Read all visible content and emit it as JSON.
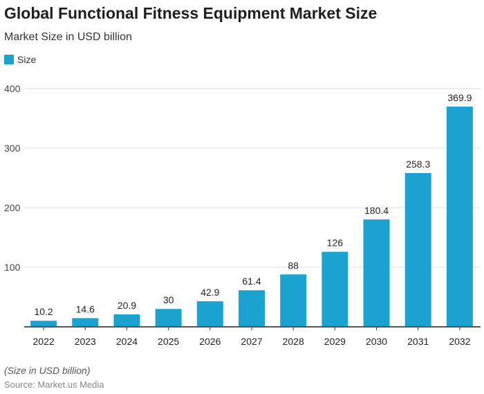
{
  "title": "Global Functional Fitness Equipment Market Size",
  "subtitle": "Market Size in USD billion",
  "note": "(Size in USD billion)",
  "source": "Source: Market.us Media",
  "chart_data": {
    "type": "bar",
    "title": "Global Functional Fitness Equipment Market Size",
    "subtitle": "Market Size in USD billion",
    "categories": [
      "2022",
      "2023",
      "2024",
      "2025",
      "2026",
      "2027",
      "2028",
      "2029",
      "2030",
      "2031",
      "2032"
    ],
    "series": [
      {
        "name": "Size",
        "values": [
          10.2,
          14.6,
          20.9,
          30,
          42.9,
          61.4,
          88,
          126,
          180.4,
          258.3,
          369.9
        ],
        "labels": [
          "10.2",
          "14.6",
          "20.9",
          "30",
          "42.9",
          "61.4",
          "88",
          "126",
          "180.4",
          "258.3",
          "369.9"
        ],
        "color": "#1ba3d0"
      }
    ],
    "ylim": [
      0,
      400
    ],
    "yticks": [
      100,
      200,
      300,
      400
    ],
    "grid": true,
    "legend": "top-left"
  }
}
